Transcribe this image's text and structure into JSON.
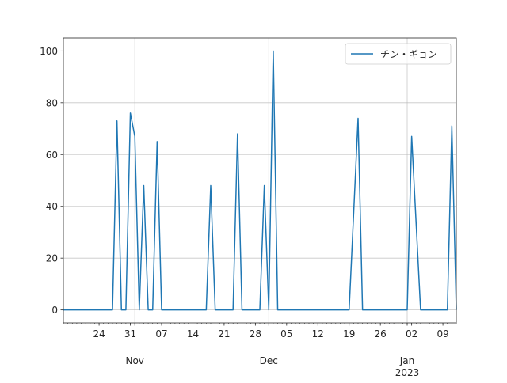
{
  "chart_data": {
    "type": "line",
    "x_axis": {
      "kind": "date",
      "range": [
        "2022-10-16",
        "2023-01-12"
      ],
      "day_ticks": [
        {
          "date": "2022-10-24",
          "label": "24"
        },
        {
          "date": "2022-10-31",
          "label": "31"
        },
        {
          "date": "2022-11-07",
          "label": "07"
        },
        {
          "date": "2022-11-14",
          "label": "14"
        },
        {
          "date": "2022-11-21",
          "label": "21"
        },
        {
          "date": "2022-11-28",
          "label": "28"
        },
        {
          "date": "2022-12-05",
          "label": "05"
        },
        {
          "date": "2022-12-12",
          "label": "12"
        },
        {
          "date": "2022-12-19",
          "label": "19"
        },
        {
          "date": "2022-12-26",
          "label": "26"
        },
        {
          "date": "2023-01-02",
          "label": "02"
        },
        {
          "date": "2023-01-09",
          "label": "09"
        }
      ],
      "month_labels": [
        {
          "date": "2022-11-01",
          "label": "Nov"
        },
        {
          "date": "2022-12-01",
          "label": "Dec"
        },
        {
          "date": "2023-01-01",
          "label": "Jan",
          "year_label": "2023"
        }
      ]
    },
    "y_axis": {
      "range": [
        -5,
        105
      ],
      "ticks": [
        0,
        20,
        40,
        60,
        80,
        100
      ]
    },
    "grid": true,
    "legend_position": "top-right",
    "series": [
      {
        "name": "チン・ギョン",
        "color": "#1f77b4",
        "points": [
          [
            "2022-10-16",
            0
          ],
          [
            "2022-10-27",
            0
          ],
          [
            "2022-10-28",
            73
          ],
          [
            "2022-10-29",
            0
          ],
          [
            "2022-10-30",
            0
          ],
          [
            "2022-10-31",
            76
          ],
          [
            "2022-11-01",
            67
          ],
          [
            "2022-11-02",
            0
          ],
          [
            "2022-11-03",
            48
          ],
          [
            "2022-11-04",
            0
          ],
          [
            "2022-11-05",
            0
          ],
          [
            "2022-11-06",
            65
          ],
          [
            "2022-11-07",
            0
          ],
          [
            "2022-11-17",
            0
          ],
          [
            "2022-11-18",
            48
          ],
          [
            "2022-11-19",
            0
          ],
          [
            "2022-11-23",
            0
          ],
          [
            "2022-11-24",
            68
          ],
          [
            "2022-11-25",
            0
          ],
          [
            "2022-11-29",
            0
          ],
          [
            "2022-11-30",
            48
          ],
          [
            "2022-12-01",
            0
          ],
          [
            "2022-12-02",
            100
          ],
          [
            "2022-12-03",
            0
          ],
          [
            "2022-12-19",
            0
          ],
          [
            "2022-12-21",
            74
          ],
          [
            "2022-12-22",
            0
          ],
          [
            "2023-01-01",
            0
          ],
          [
            "2023-01-02",
            67
          ],
          [
            "2023-01-04",
            0
          ],
          [
            "2023-01-10",
            0
          ],
          [
            "2023-01-11",
            71
          ],
          [
            "2023-01-12",
            0
          ]
        ]
      }
    ]
  }
}
